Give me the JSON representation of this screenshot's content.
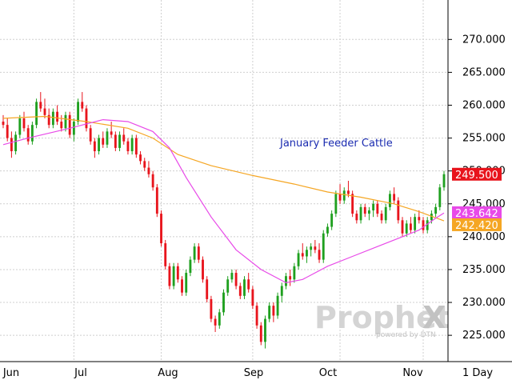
{
  "chart_data": {
    "type": "candlestick",
    "title": "January Feeder Cattle",
    "yaxis_side": "right",
    "ylim": [
      221,
      276
    ],
    "yticks": [
      "270.000",
      "265.000",
      "260.000",
      "255.000",
      "250.000",
      "245.000",
      "240.000",
      "235.000",
      "230.000",
      "225.000"
    ],
    "ytick_values": [
      270,
      265,
      260,
      255,
      250,
      245,
      240,
      235,
      230,
      225
    ],
    "months": [
      "Jun",
      "Jul",
      "Aug",
      "Sep",
      "Oct",
      "Nov"
    ],
    "period_label": "1 Day",
    "price_labels": [
      {
        "text": "249.500",
        "value": 249.5,
        "color": "#e8141c",
        "label": "last price"
      },
      {
        "text": "243.642",
        "value": 243.642,
        "color": "#e84ae8",
        "label": "ma fast"
      },
      {
        "text": "242.420",
        "value": 242.42,
        "color": "#f5a623",
        "label": "ma slow"
      }
    ],
    "candles": [
      [
        257.5,
        258.5,
        256.5,
        257
      ],
      [
        257,
        258,
        254.5,
        255
      ],
      [
        255,
        256,
        252,
        253
      ],
      [
        253,
        256,
        252.5,
        255.5
      ],
      [
        255.5,
        258.5,
        255,
        258
      ],
      [
        258,
        259,
        256,
        256.5
      ],
      [
        256.5,
        257,
        254,
        254.5
      ],
      [
        254.5,
        257.5,
        254,
        257
      ],
      [
        257,
        261,
        256.5,
        260.5
      ],
      [
        260.5,
        262,
        259,
        259.5
      ],
      [
        259.5,
        261,
        258,
        258.5
      ],
      [
        258.5,
        259.5,
        256.5,
        257
      ],
      [
        257,
        259.5,
        256.5,
        259
      ],
      [
        259,
        260,
        257,
        257.5
      ],
      [
        257.5,
        258.5,
        256,
        256.5
      ],
      [
        256.5,
        259,
        256,
        258.5
      ],
      [
        258.5,
        259,
        255,
        255.5
      ],
      [
        255.5,
        258,
        254.5,
        257.5
      ],
      [
        257.5,
        261,
        257,
        260.5
      ],
      [
        260.5,
        262,
        259,
        259.5
      ],
      [
        259.5,
        260,
        256,
        256.5
      ],
      [
        256.5,
        257,
        254,
        254.5
      ],
      [
        254.5,
        255,
        252,
        253
      ],
      [
        253,
        255.5,
        252.5,
        255
      ],
      [
        255,
        256,
        253.5,
        254
      ],
      [
        254,
        256.5,
        253.5,
        256
      ],
      [
        256,
        257.5,
        255,
        255.5
      ],
      [
        255.5,
        256,
        253,
        253.5
      ],
      [
        253.5,
        256,
        253,
        255.5
      ],
      [
        255.5,
        256.5,
        254,
        254.5
      ],
      [
        254.5,
        255,
        252.5,
        253
      ],
      [
        253,
        255.5,
        252.5,
        255
      ],
      [
        255,
        255.5,
        252,
        252.5
      ],
      [
        252.5,
        253,
        251,
        251.5
      ],
      [
        251.5,
        252,
        250,
        250.5
      ],
      [
        250.5,
        251.5,
        249,
        249.5
      ],
      [
        249.5,
        250,
        247,
        247.5
      ],
      [
        247.5,
        248,
        243,
        243.5
      ],
      [
        243.5,
        244,
        238.5,
        239
      ],
      [
        239,
        239.5,
        235,
        235.5
      ],
      [
        235.5,
        236,
        232,
        232.5
      ],
      [
        232.5,
        236,
        232,
        235.5
      ],
      [
        235.5,
        236,
        233,
        233.5
      ],
      [
        233.5,
        234,
        231,
        231.5
      ],
      [
        231.5,
        235,
        231,
        234.5
      ],
      [
        234.5,
        237,
        234,
        236.5
      ],
      [
        236.5,
        239,
        236,
        238.5
      ],
      [
        238.5,
        239,
        236,
        236.5
      ],
      [
        236.5,
        237,
        233,
        233.5
      ],
      [
        233.5,
        234,
        230,
        230.5
      ],
      [
        230.5,
        231,
        227,
        227.5
      ],
      [
        227.5,
        228,
        225.5,
        226.5
      ],
      [
        226.5,
        229,
        226,
        228.5
      ],
      [
        228.5,
        232,
        228,
        231.5
      ],
      [
        231.5,
        234,
        231,
        233.5
      ],
      [
        233.5,
        235,
        233,
        234.5
      ],
      [
        234.5,
        235,
        232,
        232.5
      ],
      [
        232.5,
        233,
        230.5,
        231
      ],
      [
        231,
        234,
        230.5,
        233.5
      ],
      [
        233.5,
        234.5,
        231.5,
        232
      ],
      [
        232,
        232.5,
        229,
        229.5
      ],
      [
        229.5,
        230,
        226,
        226.5
      ],
      [
        226.5,
        227,
        223.5,
        224
      ],
      [
        224,
        228,
        223,
        227.5
      ],
      [
        227.5,
        230,
        227,
        229.5
      ],
      [
        229.5,
        230,
        227,
        228
      ],
      [
        228,
        231.5,
        227.5,
        231
      ],
      [
        231,
        233,
        230,
        232.5
      ],
      [
        232.5,
        234.5,
        232,
        234
      ],
      [
        234,
        235,
        232.5,
        233.5
      ],
      [
        233.5,
        236,
        233,
        235.5
      ],
      [
        235.5,
        238,
        235,
        237.5
      ],
      [
        237.5,
        239,
        236.5,
        237
      ],
      [
        237,
        238.5,
        236,
        238
      ],
      [
        238,
        239,
        237,
        238.5
      ],
      [
        238.5,
        239.5,
        237.5,
        238
      ],
      [
        238,
        239,
        236,
        236.5
      ],
      [
        236.5,
        241,
        236,
        240.5
      ],
      [
        240.5,
        242,
        240,
        241.5
      ],
      [
        241.5,
        244,
        241,
        243.5
      ],
      [
        243.5,
        247,
        243,
        246.5
      ],
      [
        246.5,
        248,
        245,
        245.5
      ],
      [
        245.5,
        247.5,
        245,
        247
      ],
      [
        247,
        248.5,
        246,
        246.5
      ],
      [
        246.5,
        247,
        243,
        243.5
      ],
      [
        243.5,
        244,
        242,
        242.5
      ],
      [
        242.5,
        245,
        242,
        244.5
      ],
      [
        244.5,
        245,
        243,
        243.5
      ],
      [
        243.5,
        244.5,
        242.5,
        244
      ],
      [
        244,
        245.5,
        243,
        245
      ],
      [
        245,
        245.5,
        243,
        243.5
      ],
      [
        243.5,
        244,
        242,
        242.5
      ],
      [
        242.5,
        245,
        242,
        244.5
      ],
      [
        244.5,
        247,
        244,
        246.5
      ],
      [
        246.5,
        247.5,
        245,
        245.5
      ],
      [
        245.5,
        246,
        242,
        242.5
      ],
      [
        242.5,
        243,
        240,
        240.5
      ],
      [
        240.5,
        242.5,
        240,
        242
      ],
      [
        242,
        243,
        240.5,
        241
      ],
      [
        241,
        243.5,
        240.5,
        243
      ],
      [
        243,
        244,
        242,
        242.5
      ],
      [
        242.5,
        243,
        240.5,
        241
      ],
      [
        241,
        243,
        240.5,
        242.5
      ],
      [
        242.5,
        244,
        242,
        243.5
      ],
      [
        243.5,
        245,
        243,
        244.5
      ],
      [
        244.5,
        248,
        244,
        247.5
      ],
      [
        247.5,
        250,
        247,
        249.5
      ]
    ],
    "ma_fast": [
      [
        0,
        254
      ],
      [
        6,
        255
      ],
      [
        16,
        256.5
      ],
      [
        24,
        257.8
      ],
      [
        30,
        257.5
      ],
      [
        36,
        256
      ],
      [
        40,
        253.5
      ],
      [
        44,
        249
      ],
      [
        50,
        243
      ],
      [
        56,
        238
      ],
      [
        62,
        235
      ],
      [
        68,
        233
      ],
      [
        72,
        233.5
      ],
      [
        78,
        235.5
      ],
      [
        84,
        237
      ],
      [
        90,
        238.5
      ],
      [
        96,
        240
      ],
      [
        100,
        241
      ],
      [
        104,
        242.8
      ],
      [
        106,
        243.6
      ]
    ],
    "ma_slow": [
      [
        0,
        258
      ],
      [
        10,
        258.3
      ],
      [
        20,
        257.5
      ],
      [
        30,
        256.5
      ],
      [
        36,
        255
      ],
      [
        42,
        252.5
      ],
      [
        50,
        250.8
      ],
      [
        60,
        249.3
      ],
      [
        70,
        248
      ],
      [
        78,
        246.8
      ],
      [
        86,
        246
      ],
      [
        94,
        245
      ],
      [
        100,
        243.8
      ],
      [
        106,
        242.4
      ]
    ],
    "watermark": {
      "brand_a": "Prophet",
      "brand_b": "X",
      "sub": "powered by DTN"
    }
  }
}
